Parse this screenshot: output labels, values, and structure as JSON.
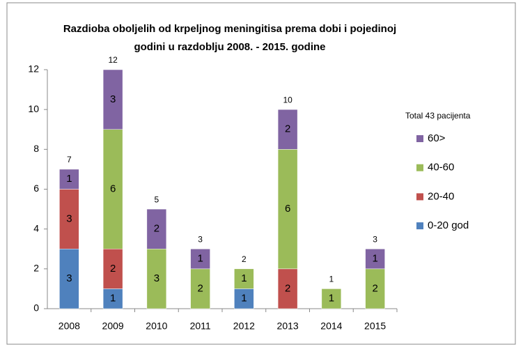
{
  "chart_data": {
    "type": "stacked_bar",
    "title": [
      "Razdioba oboljelih od krpeljnog meningitisa prema dobi i pojedinoj",
      "godini u razdoblju  2008. - 2015. godine"
    ],
    "annotation": "Total 43 pacijenta",
    "categories": [
      "2008",
      "2009",
      "2010",
      "2011",
      "2012",
      "2013",
      "2014",
      "2015"
    ],
    "series": [
      {
        "name": "0-20 god",
        "color": "#4f81bd",
        "values": [
          3,
          1,
          0,
          0,
          1,
          0,
          0,
          0
        ]
      },
      {
        "name": "20-40",
        "color": "#c0504d",
        "values": [
          3,
          2,
          0,
          0,
          0,
          2,
          0,
          0
        ]
      },
      {
        "name": "40-60",
        "color": "#9bbb59",
        "values": [
          0,
          6,
          3,
          2,
          1,
          6,
          1,
          2
        ]
      },
      {
        "name": "60>",
        "color": "#8064a2",
        "values": [
          1,
          3,
          2,
          1,
          0,
          2,
          0,
          1
        ]
      }
    ],
    "totals": [
      7,
      12,
      5,
      3,
      2,
      10,
      1,
      3
    ],
    "ylim": [
      0,
      12
    ],
    "yticks": [
      0,
      2,
      4,
      6,
      8,
      10,
      12
    ],
    "grid": false,
    "legend": "right"
  }
}
